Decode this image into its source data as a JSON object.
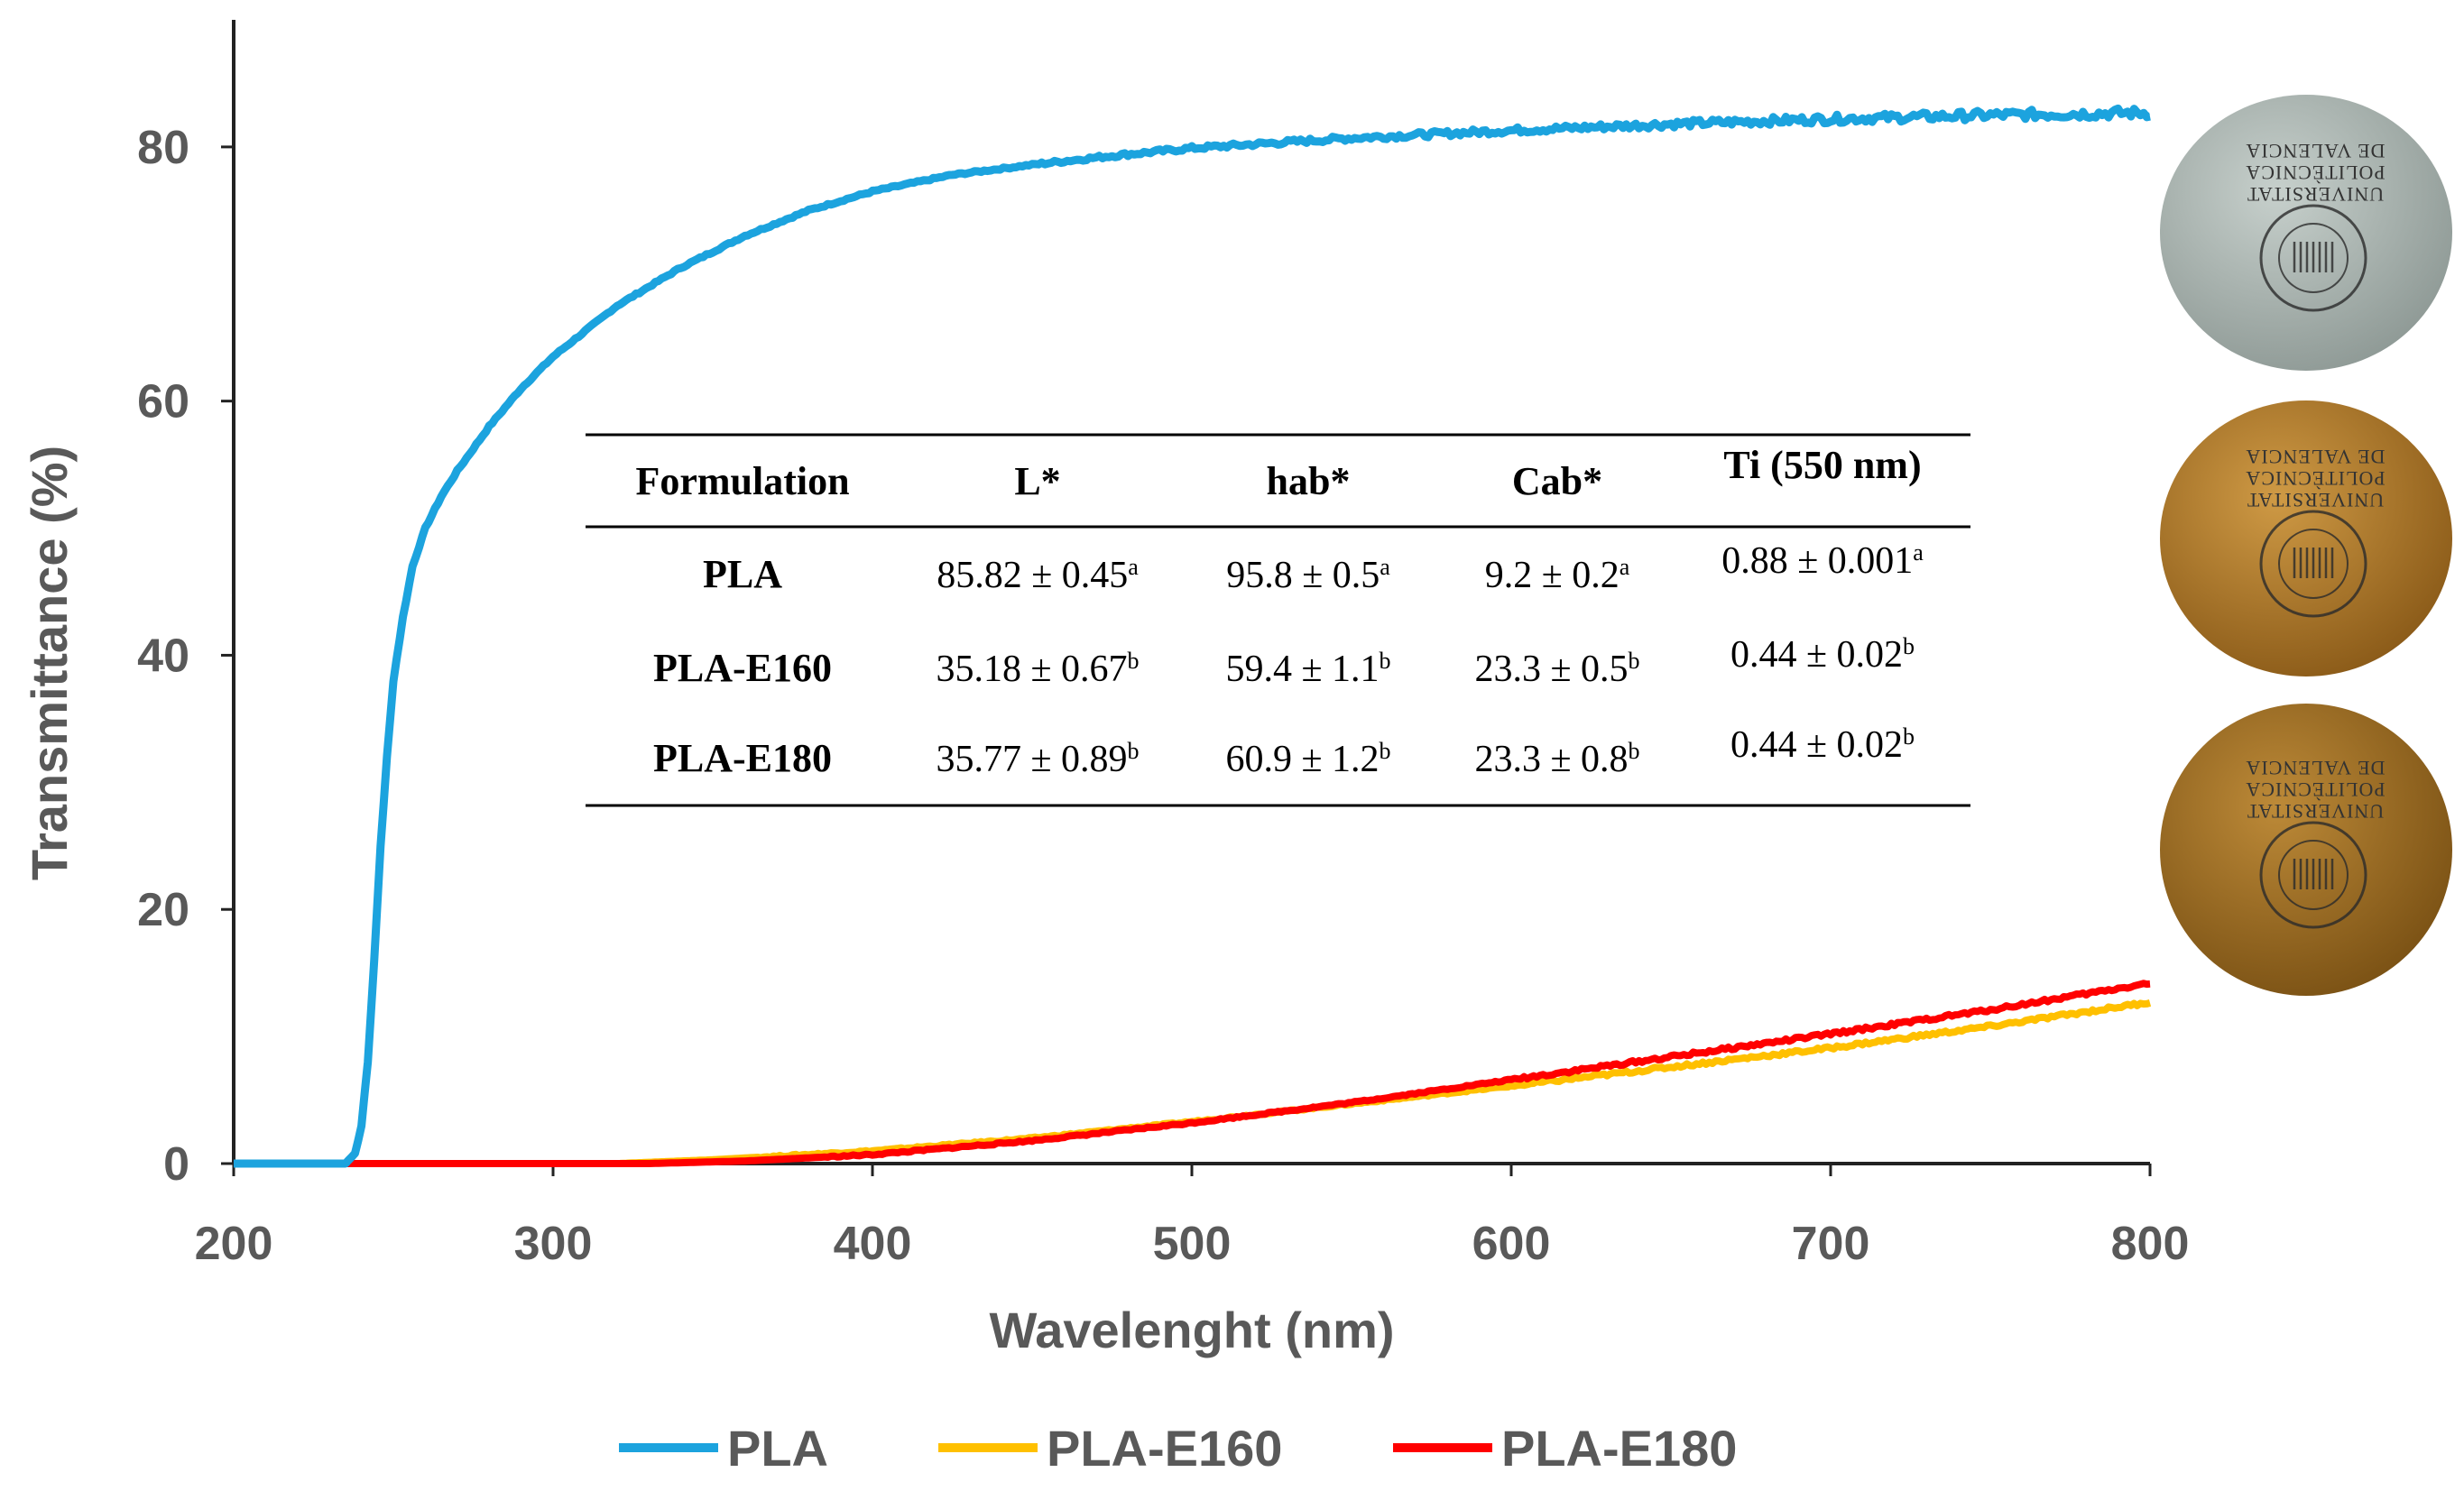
{
  "chart_data": {
    "type": "line",
    "title": "",
    "xlabel": "Wavelenght (nm)",
    "ylabel": "Transmittance (%)",
    "xlim": [
      200,
      800
    ],
    "ylim": [
      0,
      90
    ],
    "xticks": [
      "200",
      "300",
      "400",
      "500",
      "600",
      "700",
      "800"
    ],
    "yticks": [
      "0",
      "20",
      "40",
      "60",
      "80"
    ],
    "grid": false,
    "legend_position": "bottom",
    "series": [
      {
        "name": "PLA",
        "color": "#1CA3DE",
        "x": [
          200,
          235,
          238,
          240,
          242,
          244,
          246,
          248,
          250,
          253,
          256,
          260,
          265,
          270,
          280,
          290,
          300,
          320,
          340,
          360,
          380,
          400,
          425,
          450,
          475,
          500,
          550,
          600,
          650,
          700,
          750,
          800
        ],
        "y": [
          0,
          0,
          0.8,
          3,
          8,
          16,
          25,
          32,
          38,
          43,
          47,
          50,
          52.5,
          54.5,
          58,
          61,
          63.5,
          67.5,
          70.5,
          73,
          75,
          76.5,
          77.8,
          78.6,
          79.3,
          79.9,
          80.7,
          81.3,
          81.8,
          82.2,
          82.5,
          82.7
        ]
      },
      {
        "name": "PLA-E160",
        "color": "#FFC000",
        "x": [
          200,
          320,
          350,
          400,
          450,
          500,
          550,
          600,
          650,
          700,
          750,
          800
        ],
        "y": [
          0,
          0,
          0.3,
          1.0,
          2.0,
          3.3,
          4.7,
          6.1,
          7.6,
          9.1,
          10.8,
          12.7
        ]
      },
      {
        "name": "PLA-E180",
        "color": "#FF0000",
        "x": [
          200,
          330,
          360,
          400,
          450,
          500,
          550,
          600,
          650,
          700,
          750,
          800
        ],
        "y": [
          0,
          0,
          0.2,
          0.7,
          1.8,
          3.2,
          4.8,
          6.6,
          8.4,
          10.2,
          12.1,
          14.2
        ]
      }
    ]
  },
  "table": {
    "headers": [
      "Formulation",
      "L*",
      "hab*",
      "Cab*",
      "Ti (550 nm)"
    ],
    "rows": [
      {
        "label": "PLA",
        "cells": [
          {
            "v": "85.82 ± 0.45",
            "s": "a"
          },
          {
            "v": "95.8 ± 0.5",
            "s": "a"
          },
          {
            "v": "9.2 ± 0.2",
            "s": "a"
          },
          {
            "v": "0.88 ± 0.001",
            "s": "a"
          }
        ]
      },
      {
        "label": "PLA-E160",
        "cells": [
          {
            "v": "35.18 ± 0.67",
            "s": "b"
          },
          {
            "v": "59.4 ± 1.1",
            "s": "b"
          },
          {
            "v": "23.3 ± 0.5",
            "s": "b"
          },
          {
            "v": "0.44 ± 0.02",
            "s": "b"
          }
        ]
      },
      {
        "label": "PLA-E180",
        "cells": [
          {
            "v": "35.77 ± 0.89",
            "s": "b"
          },
          {
            "v": "60.9 ± 1.2",
            "s": "b"
          },
          {
            "v": "23.3 ± 0.8",
            "s": "b"
          },
          {
            "v": "0.44 ± 0.02",
            "s": "b"
          }
        ]
      }
    ]
  },
  "samples": [
    {
      "name": "PLA",
      "color": "#A9B4B0",
      "lines": [
        "DE VALENCIA",
        "POLITÈCNICA",
        "UNIVERSITAT"
      ]
    },
    {
      "name": "PLA-E160",
      "color": "#B07A2A",
      "lines": [
        "DE VALENCIA",
        "POLITÈCNICA",
        "UNIVERSITAT"
      ]
    },
    {
      "name": "PLA-E180",
      "color": "#9C6D24",
      "lines": [
        "DE VALENCIA",
        "POLITÈCNICA",
        "UNIVERSITAT"
      ]
    }
  ]
}
